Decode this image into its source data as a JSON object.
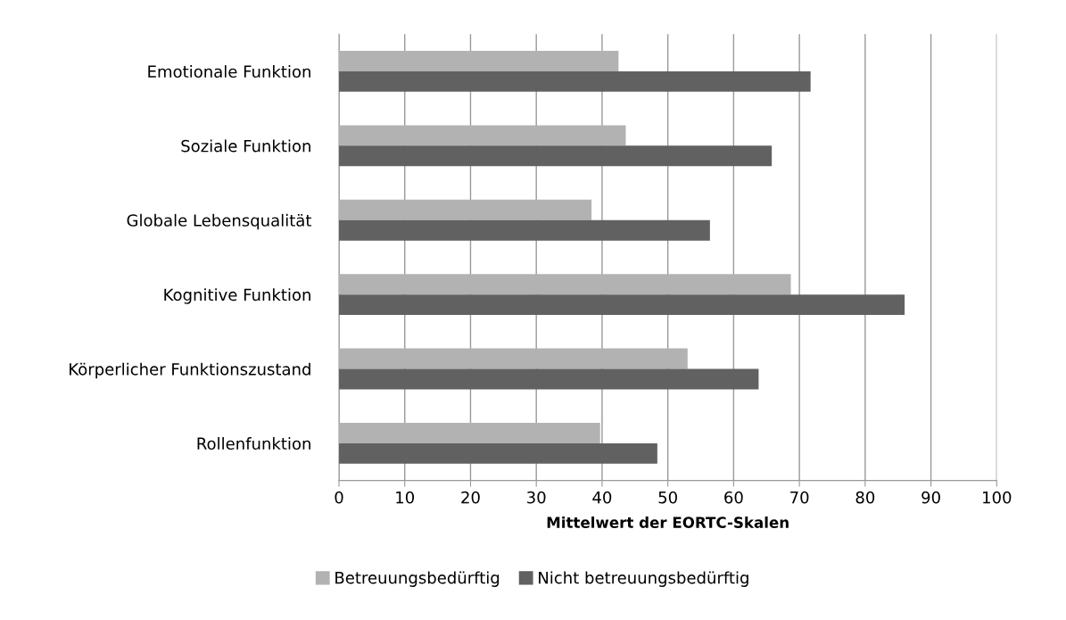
{
  "chart_data": {
    "type": "bar",
    "orientation": "horizontal",
    "xlabel": "Mittelwert der EORTC-Skalen",
    "categories": [
      "Emotionale Funktion",
      "Soziale Funktion",
      "Globale Lebensqualität",
      "Kognitive Funktion",
      "Körperlicher Funktionszustand",
      "Rollenfunktion"
    ],
    "series": [
      {
        "name": "Betreuungsbedürftig",
        "color": "#b2b2b2",
        "values": [
          42.5,
          43.6,
          38.4,
          68.7,
          53.0,
          39.7
        ]
      },
      {
        "name": "Nicht betreuungsbedürftig",
        "color": "#616161",
        "values": [
          71.7,
          65.8,
          56.4,
          86.0,
          63.8,
          48.4
        ]
      }
    ],
    "xlim": [
      0,
      100
    ],
    "xticks": [
      0,
      10,
      20,
      30,
      40,
      50,
      60,
      70,
      80,
      90,
      100
    ],
    "grid": "x",
    "legend": "bottom"
  }
}
